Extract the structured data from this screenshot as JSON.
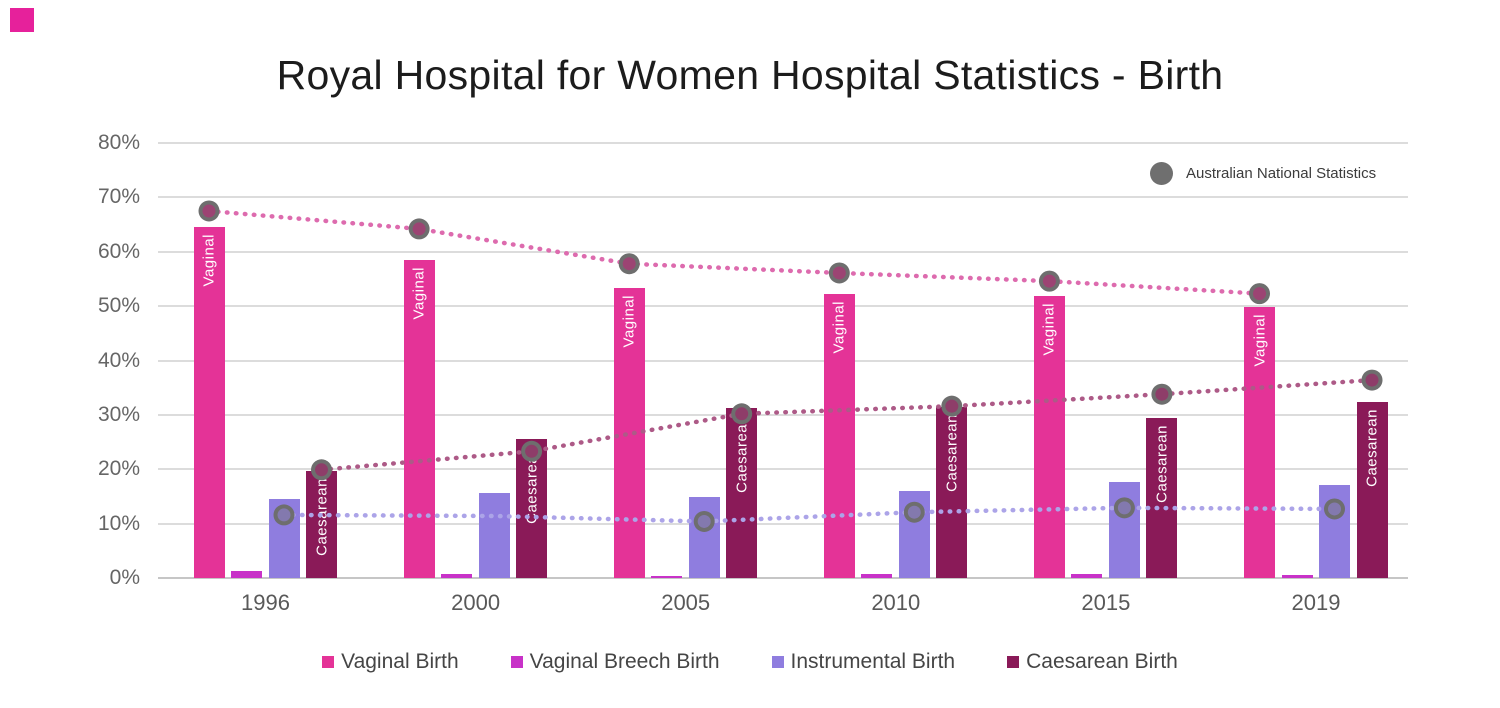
{
  "accent_corner_color": "#E6219B",
  "national_legend": {
    "label": "Australian National Statistics",
    "dot_color": "#6f6f6f"
  },
  "chart_data": {
    "type": "bar",
    "title": "Royal Hospital for Women Hospital Statistics - Birth",
    "categories": [
      "1996",
      "2000",
      "2005",
      "2010",
      "2015",
      "2019"
    ],
    "y_ticks": [
      "0%",
      "10%",
      "20%",
      "30%",
      "40%",
      "50%",
      "60%",
      "70%",
      "80%"
    ],
    "ylim": [
      0,
      80
    ],
    "grid": true,
    "legend_position": "bottom",
    "series": [
      {
        "name": "Vaginal Birth",
        "color": "#E43397",
        "bar_label": "Vaginal",
        "values": [
          64.5,
          58.5,
          53.3,
          52.2,
          51.8,
          49.8
        ]
      },
      {
        "name": "Vaginal Breech Birth",
        "color": "#C832C8",
        "values": [
          1.3,
          0.7,
          0.4,
          0.7,
          0.7,
          0.6
        ]
      },
      {
        "name": "Instrumental Birth",
        "color": "#8F7DDF",
        "values": [
          14.5,
          15.6,
          14.9,
          16.0,
          17.7,
          17.1
        ]
      },
      {
        "name": "Caesarean Birth",
        "color": "#8A1A58",
        "bar_label": "Caesarean",
        "values": [
          19.7,
          25.6,
          31.3,
          31.4,
          29.4,
          32.4
        ]
      }
    ],
    "national_lines": [
      {
        "name": "National - Vaginal",
        "color": "#DD6BAE",
        "marker_inner": "#9C4473",
        "align_series": 0,
        "values": [
          67.5,
          64.2,
          57.8,
          56.1,
          54.6,
          52.3
        ],
        "markers": [
          true,
          true,
          true,
          true,
          true,
          true
        ]
      },
      {
        "name": "National - Caesarean",
        "color": "#AD5A87",
        "marker_inner": "#8E3D69",
        "align_series": 3,
        "values": [
          19.9,
          23.3,
          30.2,
          31.6,
          33.8,
          36.4
        ],
        "markers": [
          true,
          true,
          true,
          true,
          true,
          true
        ]
      },
      {
        "name": "National - Instrumental",
        "color": "#ACA4E8",
        "marker_inner": "#8379AE",
        "align_series": 2,
        "values": [
          11.6,
          11.4,
          10.4,
          12.1,
          12.9,
          12.7
        ],
        "markers": [
          true,
          false,
          true,
          true,
          true,
          true
        ]
      }
    ]
  }
}
